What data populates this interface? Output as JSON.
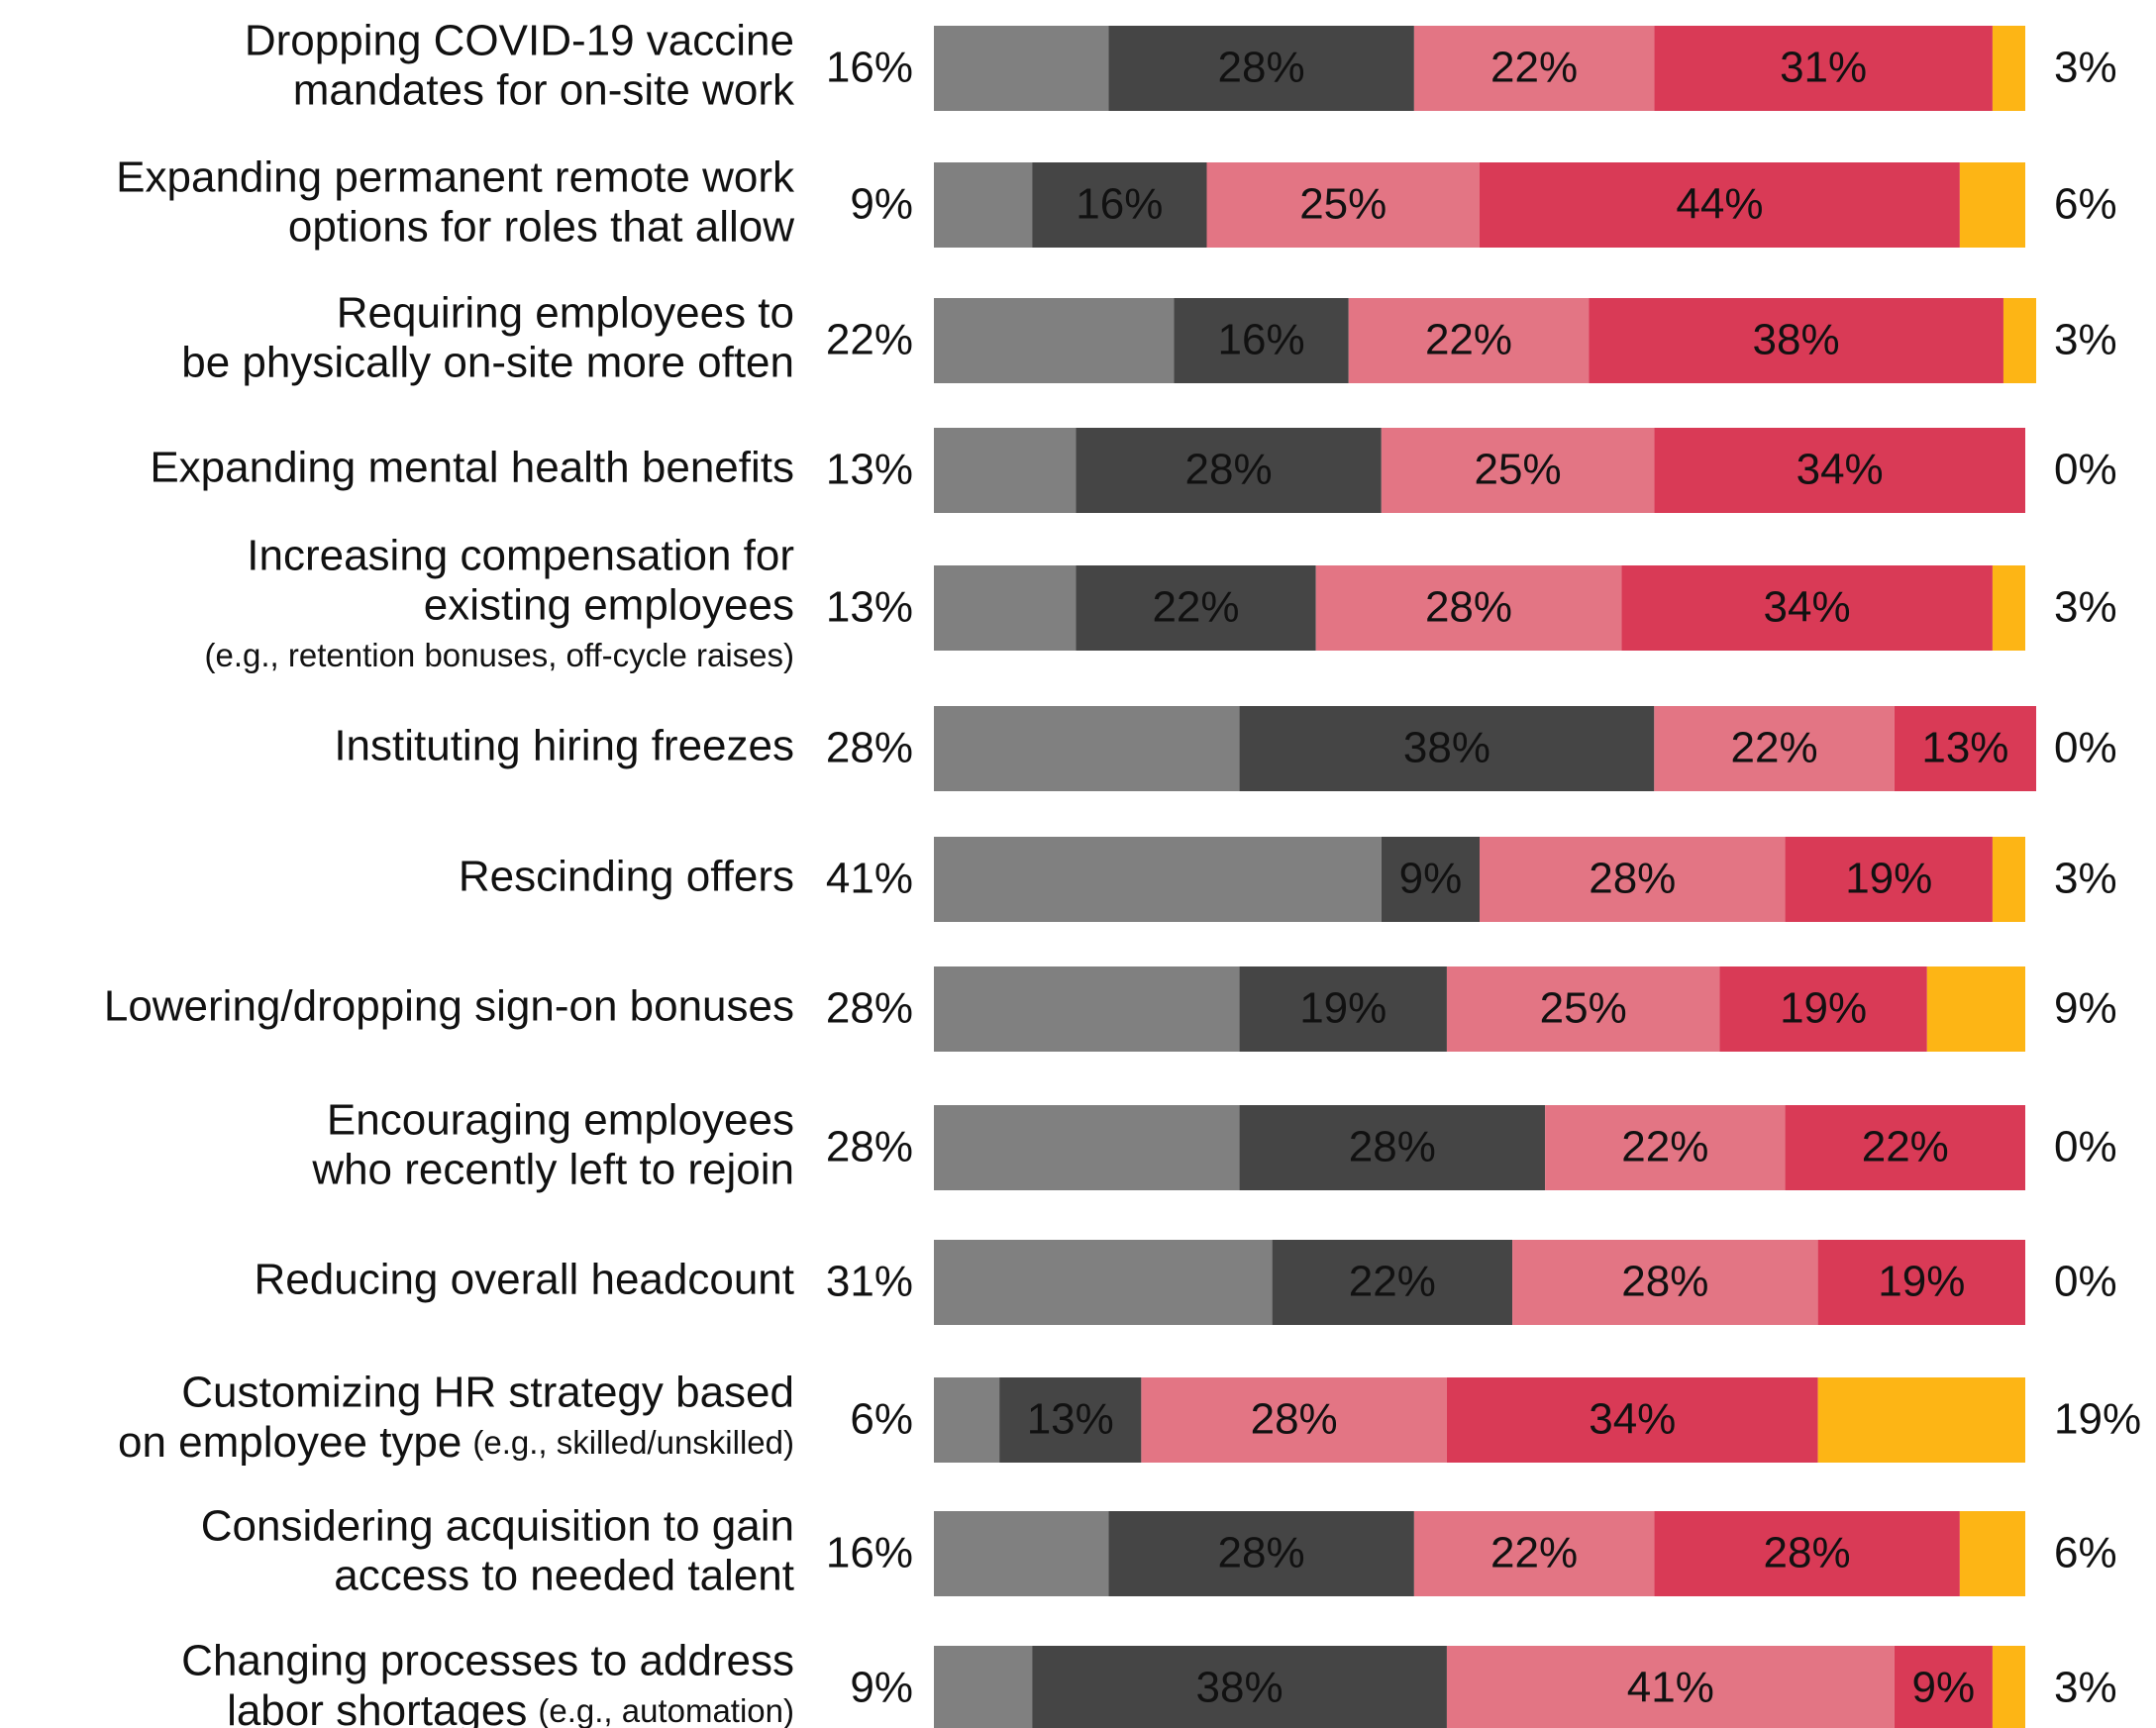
{
  "chart_data": {
    "type": "stacked-bar-horizontal",
    "categories": [
      [
        "Dropping COVID-19 vaccine",
        "mandates for on-site work"
      ],
      [
        "Expanding permanent remote work",
        "options for roles that allow"
      ],
      [
        "Requiring employees to",
        "be physically on-site more often"
      ],
      [
        "Expanding mental health benefits"
      ],
      [
        "Increasing compensation for",
        "existing employees",
        {
          "note": "(e.g., retention bonuses, off-cycle raises)"
        }
      ],
      [
        "Instituting hiring freezes"
      ],
      [
        "Rescinding offers"
      ],
      [
        "Lowering/dropping sign-on bonuses"
      ],
      [
        "Encouraging employees",
        "who recently left to rejoin"
      ],
      [
        "Reducing overall headcount"
      ],
      [
        "Customizing HR strategy based",
        {
          "text": "on employee type",
          "note": "(e.g., skilled/unskilled)"
        }
      ],
      [
        "Considering acquisition to gain",
        "access to needed talent"
      ],
      [
        "Changing processes to address",
        {
          "text": "labor shortages",
          "note": "(e.g., automation)"
        }
      ]
    ],
    "series": [
      {
        "color": "#808080",
        "label_color": "#444444",
        "label_position": "left",
        "values": [
          16,
          9,
          22,
          13,
          13,
          28,
          41,
          28,
          28,
          31,
          6,
          16,
          9
        ],
        "value_labels": [
          "16%",
          "9%",
          "22%",
          "13%",
          "13%",
          "28%",
          "41%",
          "28%",
          "28%",
          "31%",
          "6%",
          "16%",
          "9%"
        ]
      },
      {
        "color": "#454545",
        "label_color": "#ffffff",
        "label_position": "inside",
        "values": [
          28,
          16,
          16,
          28,
          22,
          38,
          9,
          19,
          28,
          22,
          13,
          28,
          38
        ],
        "value_labels": [
          "28%",
          "16%",
          "16%",
          "28%",
          "22%",
          "38%",
          "9%",
          "19%",
          "28%",
          "22%",
          "13%",
          "28%",
          "38%"
        ]
      },
      {
        "color": "#e37584",
        "label_color": "#111111",
        "label_position": "inside",
        "values": [
          22,
          25,
          22,
          25,
          28,
          22,
          28,
          25,
          22,
          28,
          28,
          22,
          41
        ],
        "value_labels": [
          "22%",
          "25%",
          "22%",
          "25%",
          "28%",
          "22%",
          "28%",
          "25%",
          "22%",
          "28%",
          "28%",
          "22%",
          "41%"
        ]
      },
      {
        "color": "#d93a56",
        "label_color": "#ffffff",
        "label_position": "inside",
        "values": [
          31,
          44,
          38,
          34,
          34,
          13,
          19,
          19,
          22,
          19,
          34,
          28,
          9
        ],
        "value_labels": [
          "31%",
          "44%",
          "38%",
          "34%",
          "34%",
          "13%",
          "19%",
          "19%",
          "22%",
          "19%",
          "34%",
          "28%",
          "9%"
        ]
      },
      {
        "color": "#fdb515",
        "label_color": "#000000",
        "label_position": "right",
        "values": [
          3,
          6,
          3,
          0,
          3,
          0,
          3,
          9,
          0,
          0,
          19,
          6,
          3
        ],
        "value_labels": [
          "3%",
          "6%",
          "3%",
          "0%",
          "3%",
          "0%",
          "3%",
          "9%",
          "0%",
          "0%",
          "19%",
          "6%",
          "3%"
        ]
      }
    ]
  }
}
